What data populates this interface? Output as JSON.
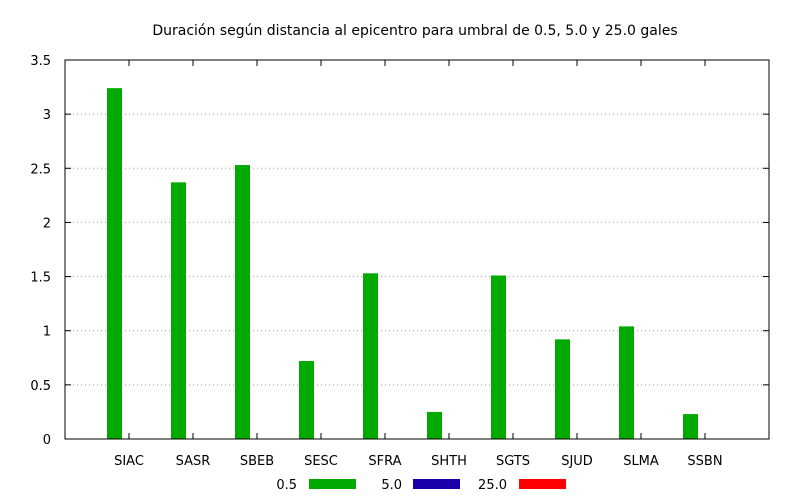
{
  "chart_data": {
    "type": "bar",
    "title": "Duración según distancia al epicentro para umbral de 0.5, 5.0 y 25.0 gales",
    "xlabel": "",
    "ylabel": "",
    "ylim": [
      0,
      3.5
    ],
    "yticks": [
      "0",
      "0.5",
      "1",
      "1.5",
      "2",
      "2.5",
      "3",
      "3.5"
    ],
    "grid": true,
    "legend_position": "bottom",
    "categories": [
      "SIAC",
      "SASR",
      "SBEB",
      "SESC",
      "SFRA",
      "SHTH",
      "SGTS",
      "SJUD",
      "SLMA",
      "SSBN"
    ],
    "series": [
      {
        "name": "0.5",
        "color": "#00aa00",
        "values": [
          3.24,
          2.37,
          2.53,
          0.72,
          1.53,
          0.25,
          1.51,
          0.92,
          1.04,
          0.23
        ]
      },
      {
        "name": "5.0",
        "color": "#1a00aa",
        "values": [
          0,
          0,
          0,
          0,
          0,
          0,
          0,
          0,
          0,
          0
        ]
      },
      {
        "name": "25.0",
        "color": "#ff0000",
        "values": [
          0,
          0,
          0,
          0,
          0,
          0,
          0,
          0,
          0,
          0
        ]
      }
    ]
  }
}
